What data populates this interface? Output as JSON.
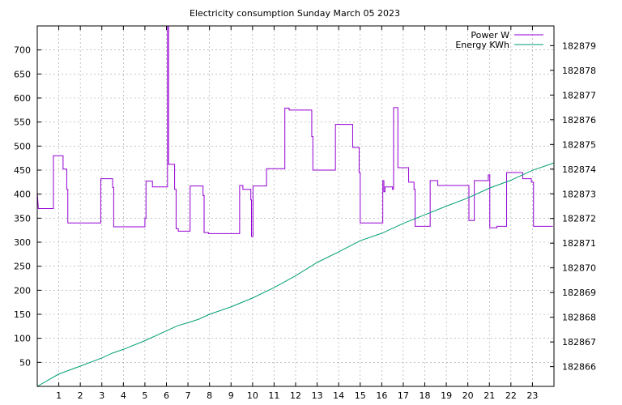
{
  "chart_data": {
    "type": "line",
    "title": "Electricity consumption Sunday March 05 2023",
    "xlim": [
      0,
      24
    ],
    "ylim": [
      0,
      750
    ],
    "y2lim": [
      182865.2,
      182879.8
    ],
    "grid": true,
    "legend_position": "top-right",
    "x_ticks": [
      "1",
      "2",
      "3",
      "4",
      "5",
      "6",
      "7",
      "8",
      "9",
      "10",
      "11",
      "12",
      "13",
      "14",
      "15",
      "16",
      "17",
      "18",
      "19",
      "20",
      "21",
      "22",
      "23"
    ],
    "y_ticks": [
      "50",
      "100",
      "150",
      "200",
      "250",
      "300",
      "350",
      "400",
      "450",
      "500",
      "550",
      "600",
      "650",
      "700"
    ],
    "y2_ticks": [
      "182866",
      "182867",
      "182868",
      "182869",
      "182870",
      "182871",
      "182872",
      "182873",
      "182874",
      "182875",
      "182876",
      "182877",
      "182878",
      "182879"
    ],
    "series": [
      {
        "name": "Power W",
        "color": "#9400d3",
        "axis": "left",
        "style": "step",
        "points": [
          [
            0,
            405
          ],
          [
            0.05,
            370
          ],
          [
            0.75,
            370
          ],
          [
            0.75,
            480
          ],
          [
            1.2,
            480
          ],
          [
            1.2,
            452
          ],
          [
            1.37,
            452
          ],
          [
            1.37,
            410
          ],
          [
            1.42,
            410
          ],
          [
            1.42,
            340
          ],
          [
            2.95,
            340
          ],
          [
            2.95,
            432
          ],
          [
            3.5,
            432
          ],
          [
            3.5,
            414
          ],
          [
            3.55,
            414
          ],
          [
            3.55,
            332
          ],
          [
            5,
            332
          ],
          [
            5,
            350
          ],
          [
            5.05,
            350
          ],
          [
            5.05,
            427
          ],
          [
            5.35,
            427
          ],
          [
            5.35,
            415
          ],
          [
            6.05,
            415
          ],
          [
            6.05,
            750
          ],
          [
            6.1,
            750
          ],
          [
            6.1,
            462
          ],
          [
            6.38,
            462
          ],
          [
            6.38,
            410
          ],
          [
            6.45,
            410
          ],
          [
            6.45,
            328
          ],
          [
            6.55,
            328
          ],
          [
            6.55,
            323
          ],
          [
            7.1,
            323
          ],
          [
            7.1,
            417
          ],
          [
            7.7,
            417
          ],
          [
            7.7,
            397
          ],
          [
            7.75,
            397
          ],
          [
            7.75,
            320
          ],
          [
            7.95,
            320
          ],
          [
            7.95,
            318
          ],
          [
            9.4,
            318
          ],
          [
            9.4,
            418
          ],
          [
            9.55,
            418
          ],
          [
            9.55,
            410
          ],
          [
            9.92,
            410
          ],
          [
            9.92,
            388
          ],
          [
            9.95,
            388
          ],
          [
            9.95,
            312
          ],
          [
            10.02,
            312
          ],
          [
            10.02,
            417
          ],
          [
            10.65,
            417
          ],
          [
            10.65,
            453
          ],
          [
            11.5,
            453
          ],
          [
            11.5,
            579
          ],
          [
            11.7,
            579
          ],
          [
            11.7,
            575
          ],
          [
            12.75,
            575
          ],
          [
            12.75,
            520
          ],
          [
            12.8,
            520
          ],
          [
            12.8,
            450
          ],
          [
            13.85,
            450
          ],
          [
            13.85,
            545
          ],
          [
            14.65,
            545
          ],
          [
            14.65,
            497
          ],
          [
            14.95,
            497
          ],
          [
            14.95,
            445
          ],
          [
            15,
            445
          ],
          [
            15,
            340
          ],
          [
            16.05,
            340
          ],
          [
            16.05,
            428
          ],
          [
            16.1,
            428
          ],
          [
            16.1,
            405
          ],
          [
            16.15,
            405
          ],
          [
            16.15,
            415
          ],
          [
            16.5,
            415
          ],
          [
            16.5,
            410
          ],
          [
            16.55,
            410
          ],
          [
            16.55,
            580
          ],
          [
            16.75,
            580
          ],
          [
            16.75,
            455
          ],
          [
            17.25,
            455
          ],
          [
            17.25,
            425
          ],
          [
            17.5,
            425
          ],
          [
            17.5,
            410
          ],
          [
            17.55,
            410
          ],
          [
            17.55,
            333
          ],
          [
            18.25,
            333
          ],
          [
            18.25,
            428
          ],
          [
            18.6,
            428
          ],
          [
            18.6,
            418
          ],
          [
            20.05,
            418
          ],
          [
            20.05,
            345
          ],
          [
            20.3,
            345
          ],
          [
            20.3,
            428
          ],
          [
            20.95,
            428
          ],
          [
            20.95,
            440
          ],
          [
            21.02,
            440
          ],
          [
            21.02,
            330
          ],
          [
            21.35,
            330
          ],
          [
            21.35,
            333
          ],
          [
            21.8,
            333
          ],
          [
            21.8,
            445
          ],
          [
            22.55,
            445
          ],
          [
            22.55,
            432
          ],
          [
            22.95,
            432
          ],
          [
            22.95,
            425
          ],
          [
            23.05,
            425
          ],
          [
            23.05,
            333
          ],
          [
            23.95,
            333
          ]
        ]
      },
      {
        "name": "Energy KWh",
        "color": "#009e73",
        "axis": "right",
        "style": "line",
        "points": [
          [
            0,
            182865.2
          ],
          [
            1,
            182865.7
          ],
          [
            2,
            182866.02
          ],
          [
            3,
            182866.35
          ],
          [
            3.5,
            182866.55
          ],
          [
            4,
            182866.7
          ],
          [
            5,
            182867.05
          ],
          [
            6,
            182867.45
          ],
          [
            6.5,
            182867.65
          ],
          [
            7,
            182867.78
          ],
          [
            7.5,
            182867.92
          ],
          [
            8,
            182868.12
          ],
          [
            9,
            182868.42
          ],
          [
            10,
            182868.78
          ],
          [
            11,
            182869.2
          ],
          [
            12,
            182869.68
          ],
          [
            13,
            182870.22
          ],
          [
            14,
            182870.65
          ],
          [
            15,
            182871.1
          ],
          [
            16,
            182871.4
          ],
          [
            17,
            182871.8
          ],
          [
            18,
            182872.15
          ],
          [
            19,
            182872.5
          ],
          [
            20,
            182872.83
          ],
          [
            21,
            182873.23
          ],
          [
            22,
            182873.55
          ],
          [
            23,
            182873.95
          ],
          [
            24,
            182874.25
          ]
        ]
      }
    ]
  }
}
